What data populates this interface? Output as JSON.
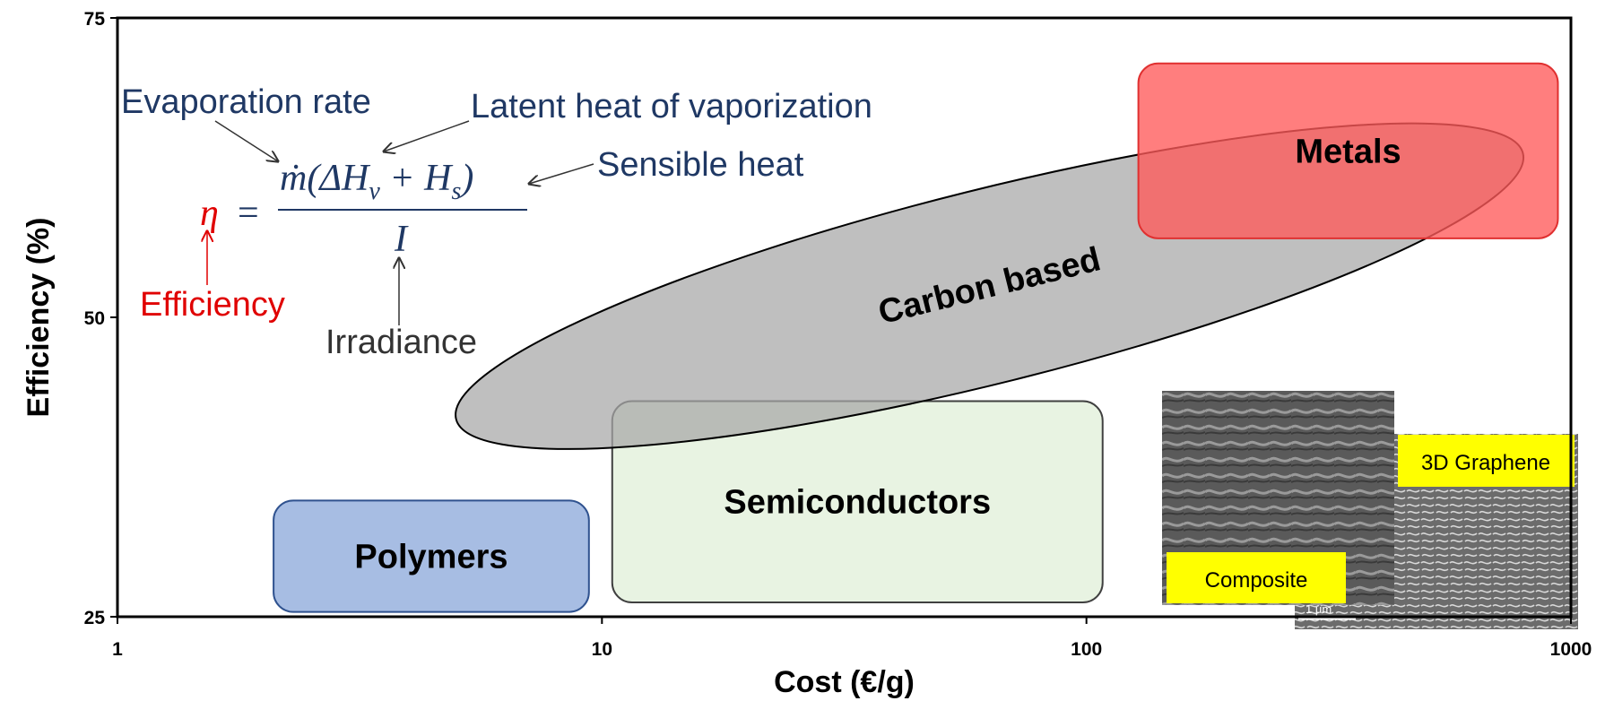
{
  "chart_data": {
    "type": "region",
    "x_label": "Cost (€/g)",
    "y_label": "Efficiency (%)",
    "xscale": "log",
    "xlim": [
      1,
      1000
    ],
    "xticks": [
      1,
      10,
      100,
      1000
    ],
    "ylim": [
      25,
      75
    ],
    "yticks": [
      25,
      50,
      75
    ],
    "grid": true,
    "regions": [
      {
        "name": "Semiconductors",
        "shape": "rect",
        "x": [
          10.5,
          108
        ],
        "y": [
          26.2,
          43.0
        ],
        "color": "#e2efda",
        "edge": "#404040"
      },
      {
        "name": "Carbon based",
        "shape": "ellipse",
        "x": [
          5.0,
          796
        ],
        "y": [
          41.5,
          63.7
        ],
        "color": "#a6a6a6",
        "edge": "#000000"
      },
      {
        "name": "Metals",
        "shape": "rect",
        "x": [
          128,
          940
        ],
        "y": [
          56.6,
          71.2
        ],
        "color": "#ff5a5a",
        "edge": "#e03030"
      },
      {
        "name": "Polymers",
        "shape": "rect",
        "x": [
          2.1,
          9.4
        ],
        "y": [
          25.4,
          34.7
        ],
        "color": "#8eaadb",
        "edge": "#2f528f"
      }
    ],
    "equation": {
      "lhs": "η",
      "equals": "=",
      "num_a": "ṁ(ΔH",
      "sub_v": "v",
      "num_b": " + H",
      "sub_s": "s",
      "num_c": ")",
      "denominator": "I"
    },
    "annotations": {
      "evaporation": "Evaporation rate",
      "latent": "Latent heat of vaporization",
      "sensible": "Sensible heat",
      "efficiency": "Efficiency",
      "irradiance": "Irradiance"
    },
    "images": {
      "graphene": "3D Graphene",
      "composite": "Composite",
      "scale": "1 μm"
    }
  }
}
